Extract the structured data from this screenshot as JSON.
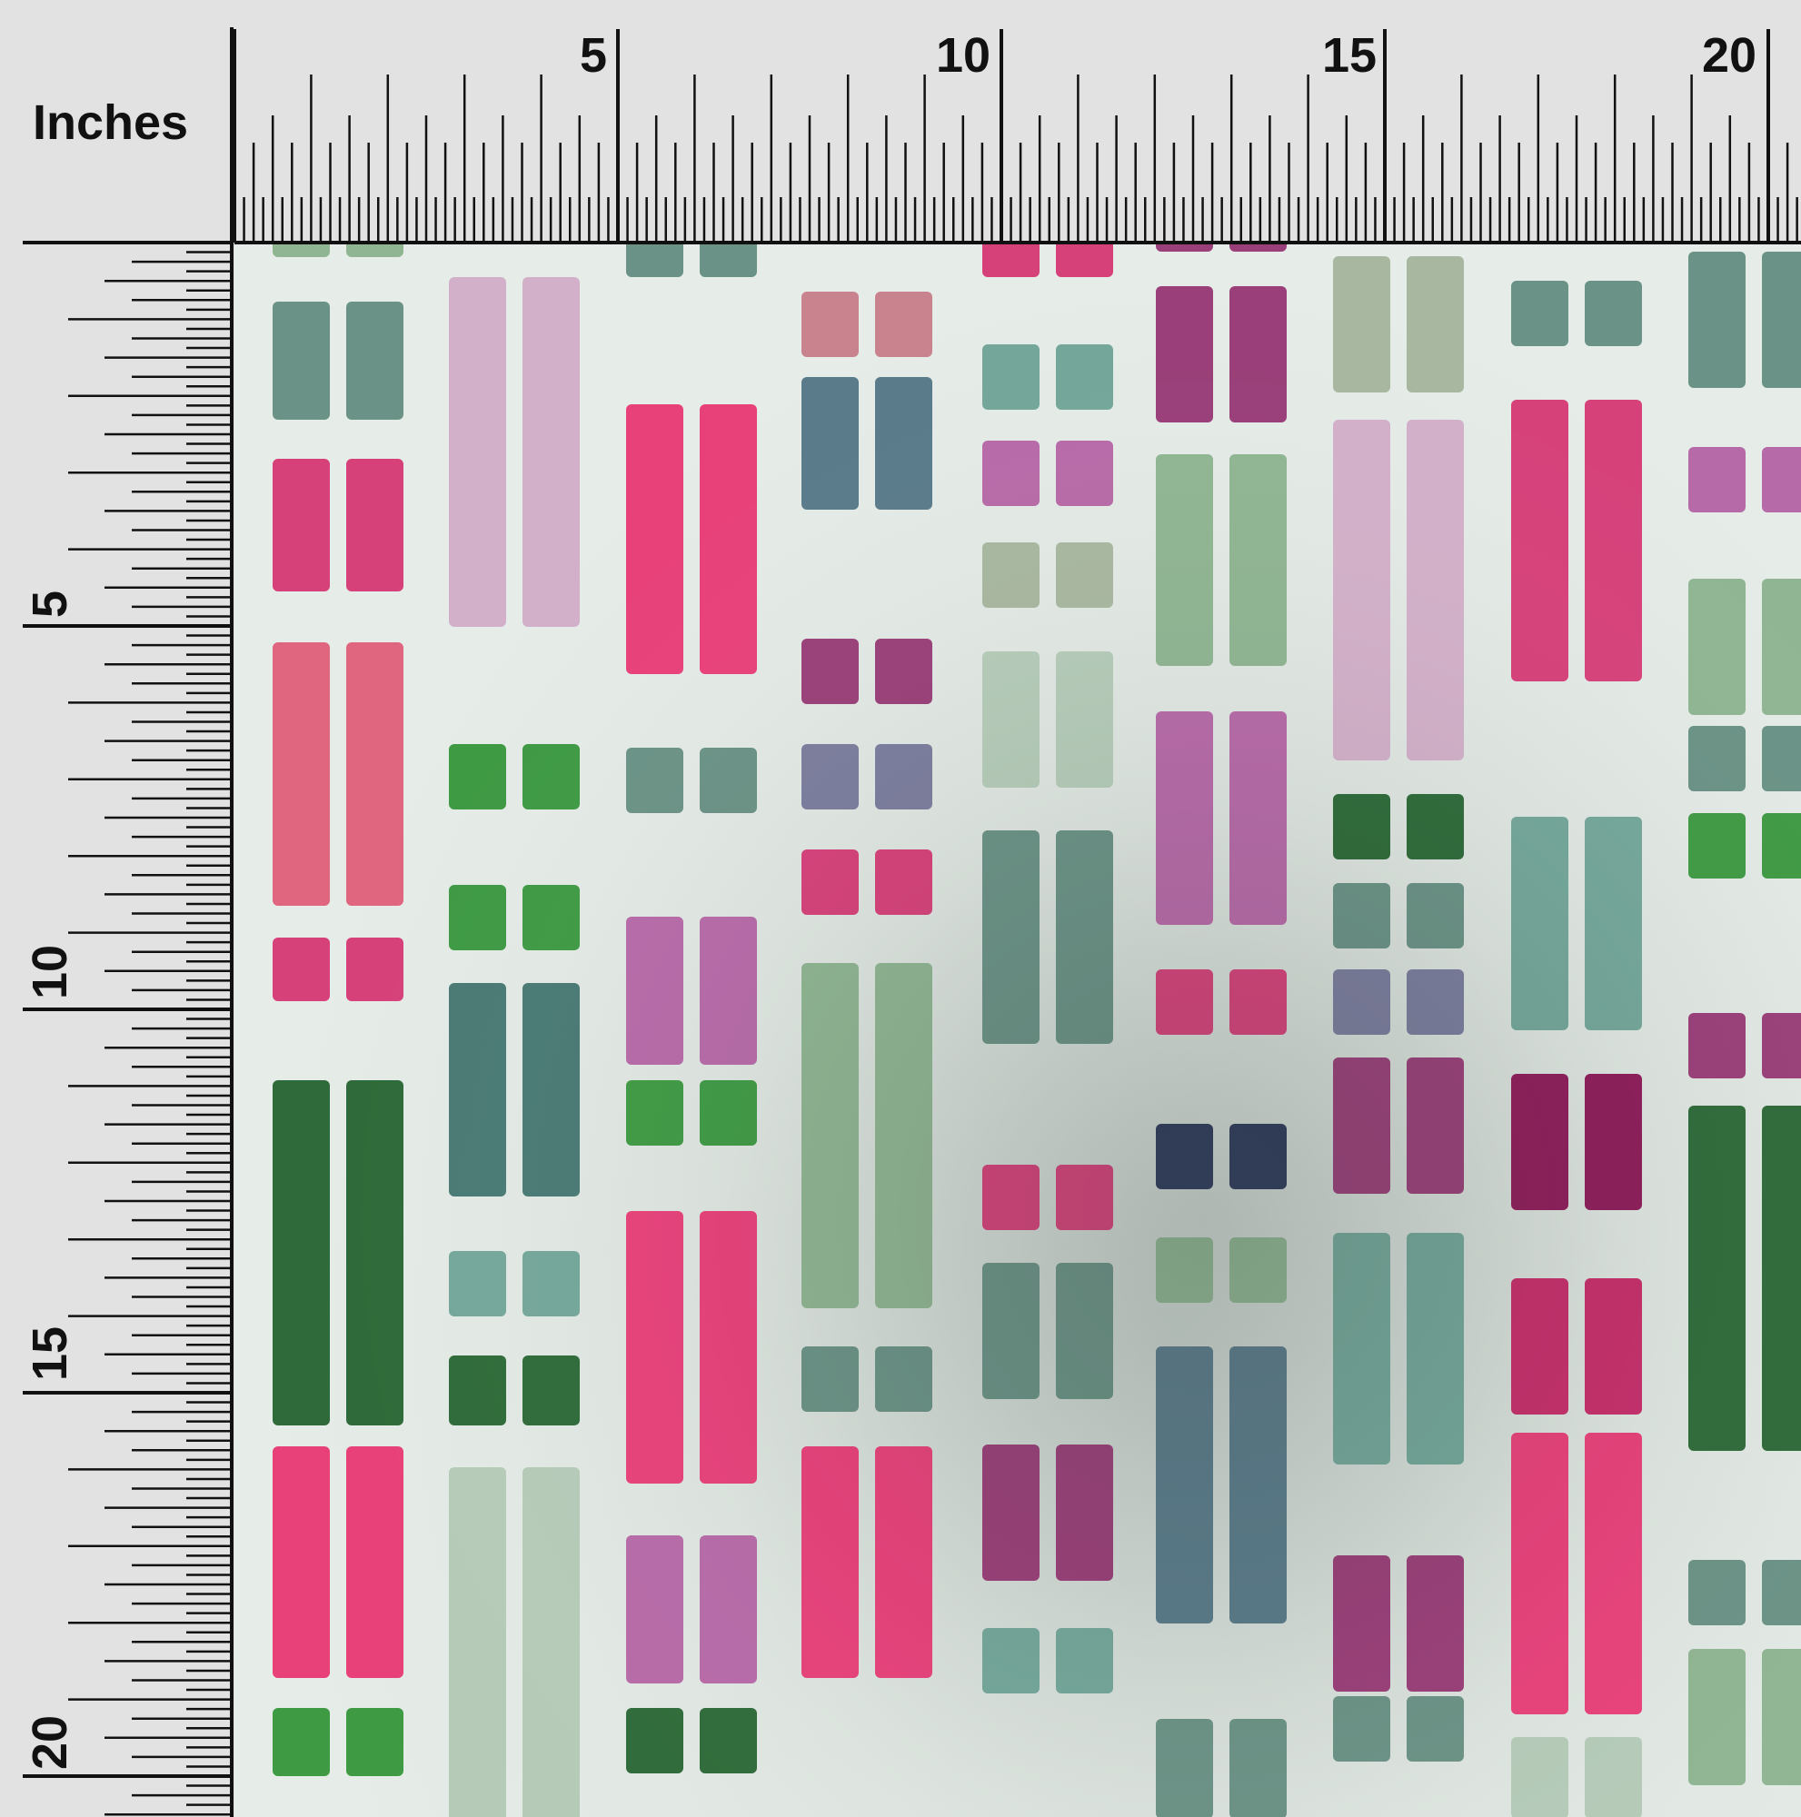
{
  "ruler": {
    "units_label": "Inches",
    "top_numbers": [
      "5",
      "10",
      "15",
      "20"
    ],
    "left_numbers": [
      "5",
      "10",
      "15",
      "20"
    ]
  },
  "fabric": {
    "background_color": "#e4ebe6",
    "palette": [
      "#e8417a",
      "#d6417a",
      "#e0657f",
      "#d2b0c9",
      "#6b9286",
      "#4a7a74",
      "#3f9a44",
      "#2f6b3a",
      "#8fb592",
      "#9a3f79",
      "#b76aa8",
      "#c9838f",
      "#7b7d9d",
      "#5a7b8a",
      "#2e3a5b",
      "#b5cbb8",
      "#a8b79f",
      "#8f1d5b",
      "#c72e6b",
      "#74a79a"
    ]
  }
}
